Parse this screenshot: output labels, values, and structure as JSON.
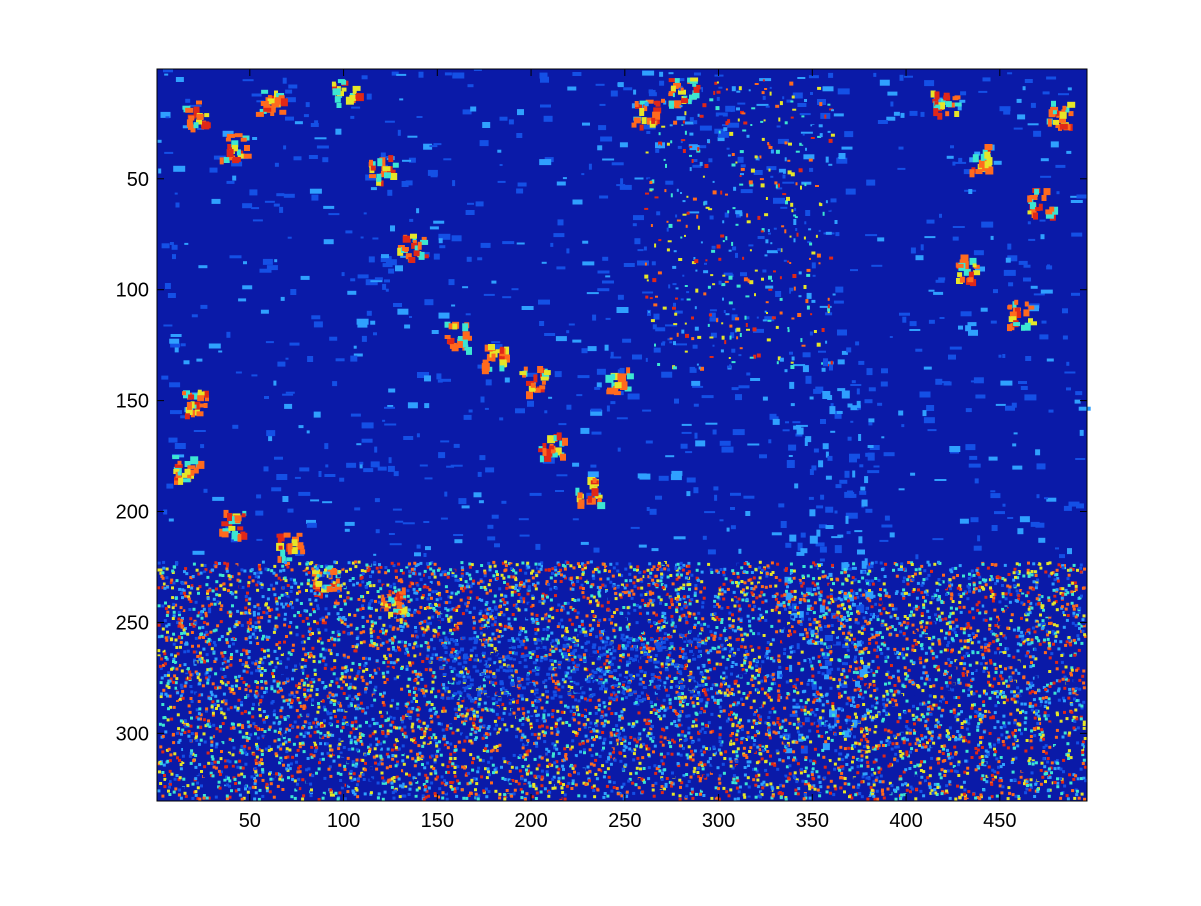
{
  "chart_data": {
    "type": "heatmap",
    "title": "",
    "xlabel": "",
    "ylabel": "",
    "xlim": [
      0.5,
      496.5
    ],
    "ylim": [
      0.5,
      330.5
    ],
    "y_reversed": true,
    "xticks": [
      50,
      100,
      150,
      200,
      250,
      300,
      350,
      400,
      450
    ],
    "yticks": [
      50,
      100,
      150,
      200,
      250,
      300
    ],
    "colormap": "jet",
    "colors": {
      "dark_blue": "#0a1aa8",
      "blue": "#1450e6",
      "light_blue": "#2fa0ff",
      "cyan": "#3ce6d2",
      "yellow": "#e6e628",
      "orange": "#ff6a1e",
      "red": "#e02818"
    },
    "grid": false,
    "legend": "none"
  }
}
